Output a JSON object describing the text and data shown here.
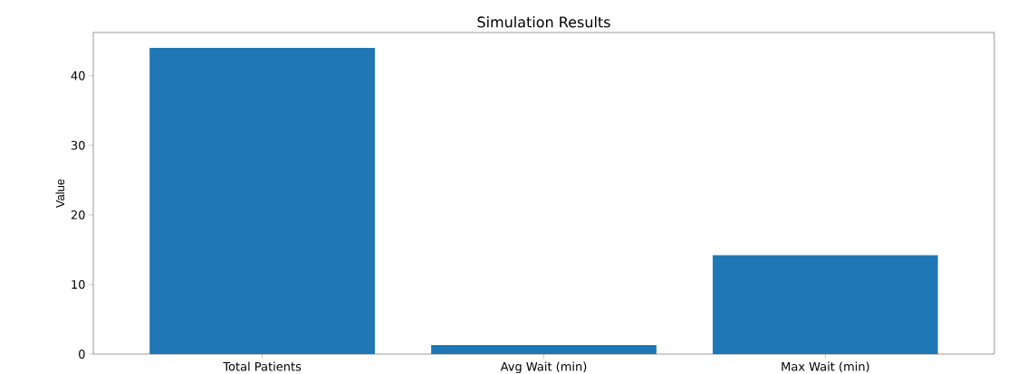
{
  "chart_data": {
    "type": "bar",
    "title": "Simulation Results",
    "ylabel": "Value",
    "categories": [
      "Total Patients",
      "Avg Wait (min)",
      "Max Wait (min)"
    ],
    "values": [
      44,
      1.3,
      14.2
    ],
    "color": "#1f77b4",
    "ylim": [
      0,
      46.2
    ],
    "yticks": [
      0,
      10,
      20,
      30,
      40
    ]
  }
}
